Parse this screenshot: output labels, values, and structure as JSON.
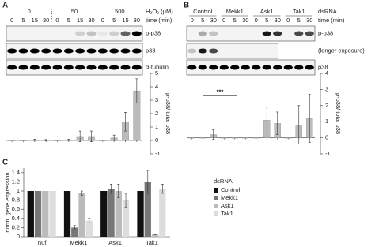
{
  "panels": {
    "a": "A",
    "b": "B",
    "c": "C"
  },
  "blots": {
    "A": {
      "groups": [
        "0",
        "50",
        "500"
      ],
      "unit": "H₂O₂ (μM)",
      "time_label": "time (min)",
      "times": [
        "0",
        "5",
        "15",
        "30"
      ],
      "rows": [
        "p-p38",
        "p38",
        "α-tubulin"
      ]
    },
    "B": {
      "groups": [
        "Control",
        "Mekk1",
        "Ask1",
        "Tak1"
      ],
      "unit": "dsRNA",
      "time_label": "time (min)",
      "times": [
        "0",
        "5",
        "30"
      ],
      "rows": [
        "p-p38",
        "(longer exposure)",
        "p38"
      ]
    }
  },
  "chart_data": [
    {
      "type": "bar",
      "ylabel": "p-p38/ total p38",
      "color": "#bbbbbb",
      "values": [
        0,
        0,
        0.05,
        0.02,
        0,
        0.05,
        0.3,
        0.3,
        0,
        0.2,
        1.4,
        3.7
      ],
      "errors": [
        0,
        0,
        0.05,
        0.05,
        0,
        0.05,
        0.4,
        0.4,
        0,
        0.2,
        0.7,
        0.9
      ],
      "ylim": [
        -1,
        5
      ],
      "yticks": [
        -1,
        0,
        1,
        2,
        3,
        4,
        5
      ]
    },
    {
      "type": "bar",
      "ylabel": "p-p38/ total p38",
      "color": "#bbbbbb",
      "annotation": "***",
      "values": [
        0,
        0,
        0.2,
        0,
        0,
        0,
        0,
        1.1,
        0.9,
        0,
        0.8,
        1.2
      ],
      "errors": [
        0,
        0,
        0.3,
        0,
        0,
        0,
        0,
        0.8,
        0.7,
        0,
        1.2,
        1.5
      ],
      "ylim": [
        -1,
        4
      ],
      "yticks": [
        -1,
        0,
        1,
        2,
        3,
        4
      ]
    },
    {
      "type": "grouped-bar",
      "ylabel": "norm. gene expression",
      "legend_title": "dsRNA",
      "categories": [
        "nuf",
        "Mekk1",
        "Ask1",
        "Tak1"
      ],
      "series": [
        {
          "name": "Control",
          "color": "#111111",
          "values": [
            1,
            1,
            1,
            1
          ],
          "errors": [
            0,
            0,
            0,
            0
          ]
        },
        {
          "name": "Mekk1",
          "color": "#777777",
          "values": [
            1,
            0.2,
            1.05,
            1.2
          ],
          "errors": [
            0,
            0.05,
            0.1,
            0.25
          ]
        },
        {
          "name": "Ask1",
          "color": "#bbbbbb",
          "values": [
            1,
            0.95,
            1.0,
            0.05
          ],
          "errors": [
            0,
            0.05,
            0.15,
            0.01
          ]
        },
        {
          "name": "Tak1",
          "color": "#dddddd",
          "values": [
            1,
            0.35,
            0.8,
            1.05
          ],
          "errors": [
            0,
            0.05,
            0.15,
            0.1
          ]
        }
      ],
      "ylim": [
        0,
        1.5
      ],
      "yticks": [
        0,
        0.2,
        0.4,
        0.6,
        0.8,
        1,
        1.2,
        1.4
      ]
    }
  ]
}
